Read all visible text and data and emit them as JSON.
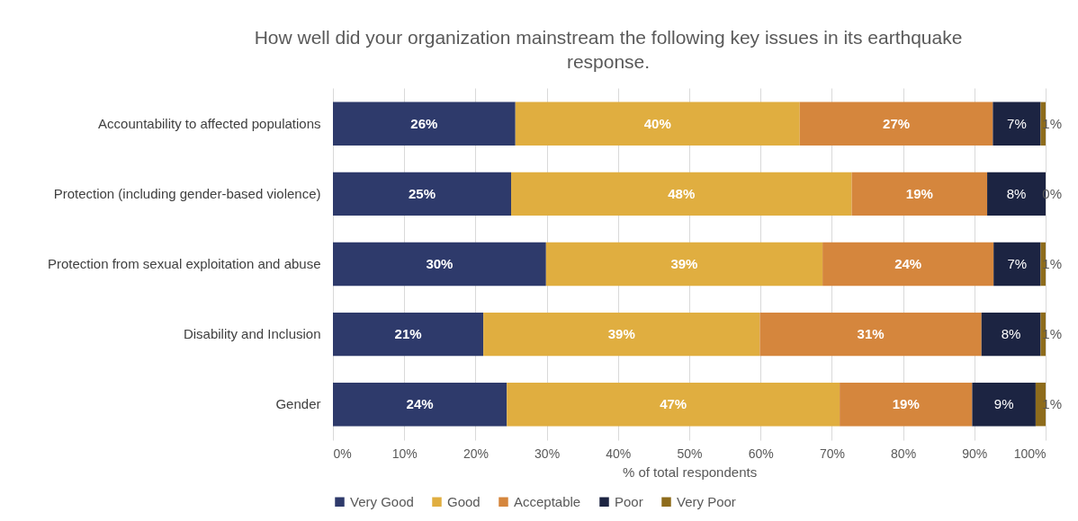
{
  "chart_data": {
    "type": "bar",
    "orientation": "horizontal",
    "stacked": true,
    "title": "How well did your organization mainstream the following key issues in its earthquake response.",
    "xlabel": "% of total respondents",
    "categories": [
      "Accountability to affected populations",
      "Protection (including gender-based violence)",
      "Protection from sexual exploitation and abuse",
      "Disability and Inclusion",
      "Gender"
    ],
    "series": [
      {
        "name": "Very Good",
        "color": "#2e3a6b",
        "values": [
          25.6,
          25.0,
          29.9,
          21.1,
          24.4
        ],
        "value_labels": [
          "26%",
          "25%",
          "30%",
          "21%",
          "24%"
        ]
      },
      {
        "name": "Good",
        "color": "#e0ae40",
        "values": [
          39.9,
          47.8,
          38.8,
          38.8,
          46.7
        ],
        "value_labels": [
          "40%",
          "48%",
          "39%",
          "39%",
          "47%"
        ]
      },
      {
        "name": "Acceptable",
        "color": "#d5863d",
        "values": [
          27.1,
          19.0,
          24.0,
          31.1,
          18.6
        ],
        "value_labels": [
          "27%",
          "19%",
          "24%",
          "31%",
          "19%"
        ]
      },
      {
        "name": "Poor",
        "color": "#1c2442",
        "values": [
          6.7,
          8.2,
          6.6,
          8.3,
          8.9
        ],
        "value_labels": [
          "7%",
          "8%",
          "7%",
          "8%",
          "9%"
        ]
      },
      {
        "name": "Very Poor",
        "color": "#8e6c1c",
        "values": [
          0.7,
          0.0,
          0.7,
          0.7,
          1.4
        ],
        "value_labels": [
          "1%",
          "0%",
          "1%",
          "1%",
          "1%"
        ]
      }
    ],
    "xlim": [
      0,
      100
    ],
    "xticks": [
      {
        "value": 0,
        "label": "0%"
      },
      {
        "value": 10,
        "label": "10%"
      },
      {
        "value": 20,
        "label": "20%"
      },
      {
        "value": 30,
        "label": "30%"
      },
      {
        "value": 40,
        "label": "40%"
      },
      {
        "value": 50,
        "label": "50%"
      },
      {
        "value": 60,
        "label": "60%"
      },
      {
        "value": 70,
        "label": "70%"
      },
      {
        "value": 80,
        "label": "80%"
      },
      {
        "value": 90,
        "label": "90%"
      },
      {
        "value": 100,
        "label": "100%"
      }
    ],
    "grid": "x",
    "legend": "bottom"
  }
}
